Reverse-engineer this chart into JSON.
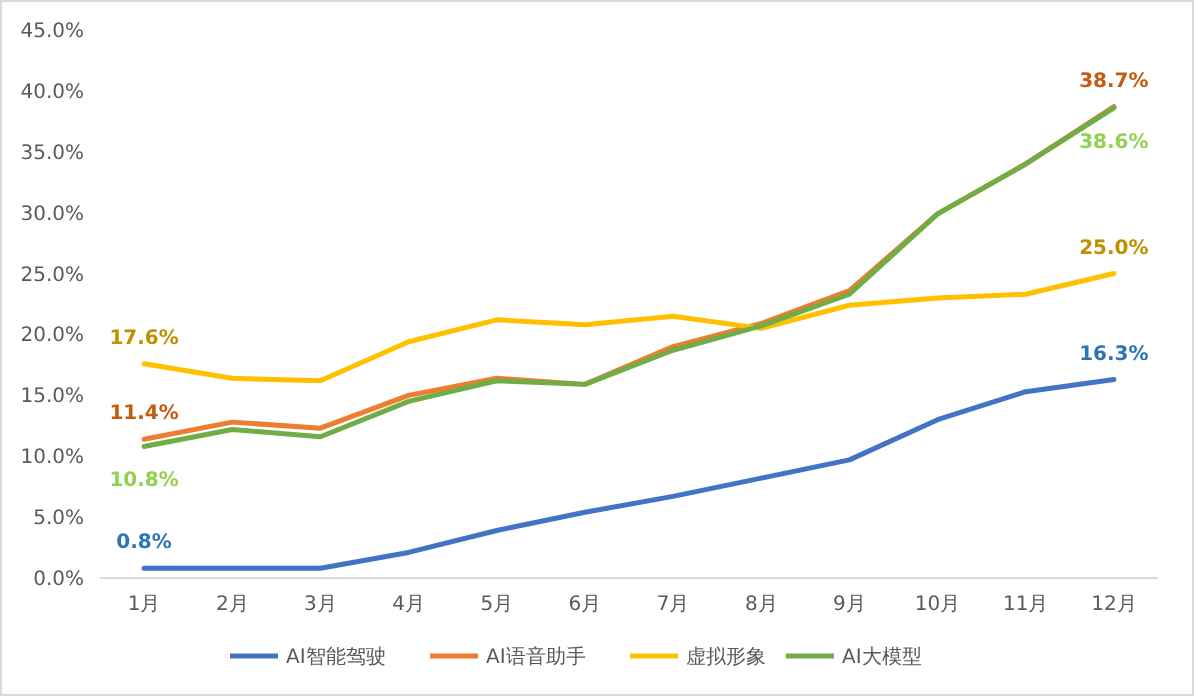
{
  "chart_data": {
    "type": "line",
    "categories": [
      "1月",
      "2月",
      "3月",
      "4月",
      "5月",
      "6月",
      "7月",
      "8月",
      "9月",
      "10月",
      "11月",
      "12月"
    ],
    "ylim": [
      0,
      45
    ],
    "yticks": [
      {
        "value": 0,
        "label": "0.0%"
      },
      {
        "value": 5,
        "label": "5.0%"
      },
      {
        "value": 10,
        "label": "10.0%"
      },
      {
        "value": 15,
        "label": "15.0%"
      },
      {
        "value": 20,
        "label": "20.0%"
      },
      {
        "value": 25,
        "label": "25.0%"
      },
      {
        "value": 30,
        "label": "30.0%"
      },
      {
        "value": 35,
        "label": "35.0%"
      },
      {
        "value": 40,
        "label": "40.0%"
      },
      {
        "value": 45,
        "label": "45.0%"
      }
    ],
    "legend": "bottom",
    "grid": false,
    "marker": "none",
    "line_style": "solid",
    "series": [
      {
        "name": "AI智能驾驶",
        "color": "#4472c4",
        "values": [
          0.8,
          0.8,
          0.8,
          2.1,
          3.9,
          5.4,
          6.7,
          8.2,
          9.7,
          13.0,
          15.3,
          16.3
        ],
        "value_labels": [
          "0.8%",
          null,
          null,
          null,
          null,
          null,
          null,
          null,
          null,
          null,
          null,
          "16.3%"
        ]
      },
      {
        "name": "AI语音助手",
        "color": "#ed7d31",
        "values": [
          11.4,
          12.8,
          12.3,
          15.0,
          16.4,
          15.9,
          19.0,
          20.9,
          23.6,
          29.9,
          34.0,
          38.7
        ],
        "value_labels": [
          "11.4%",
          null,
          null,
          null,
          null,
          null,
          null,
          null,
          null,
          null,
          null,
          "38.7%"
        ]
      },
      {
        "name": "虚拟形象",
        "color": "#ffc000",
        "values": [
          17.6,
          16.4,
          16.2,
          19.4,
          21.2,
          20.8,
          21.5,
          20.5,
          22.4,
          23.0,
          23.3,
          25.0
        ],
        "value_labels": [
          "17.6%",
          null,
          null,
          null,
          null,
          null,
          null,
          null,
          null,
          null,
          null,
          "25.0%"
        ]
      },
      {
        "name": "AI大模型",
        "color": "#70ad47",
        "values": [
          10.8,
          12.2,
          11.6,
          14.5,
          16.2,
          15.9,
          18.7,
          20.7,
          23.3,
          29.9,
          34.0,
          38.6
        ],
        "value_labels": [
          "10.8%",
          null,
          null,
          null,
          null,
          null,
          null,
          null,
          null,
          null,
          null,
          "38.6%"
        ]
      }
    ]
  }
}
